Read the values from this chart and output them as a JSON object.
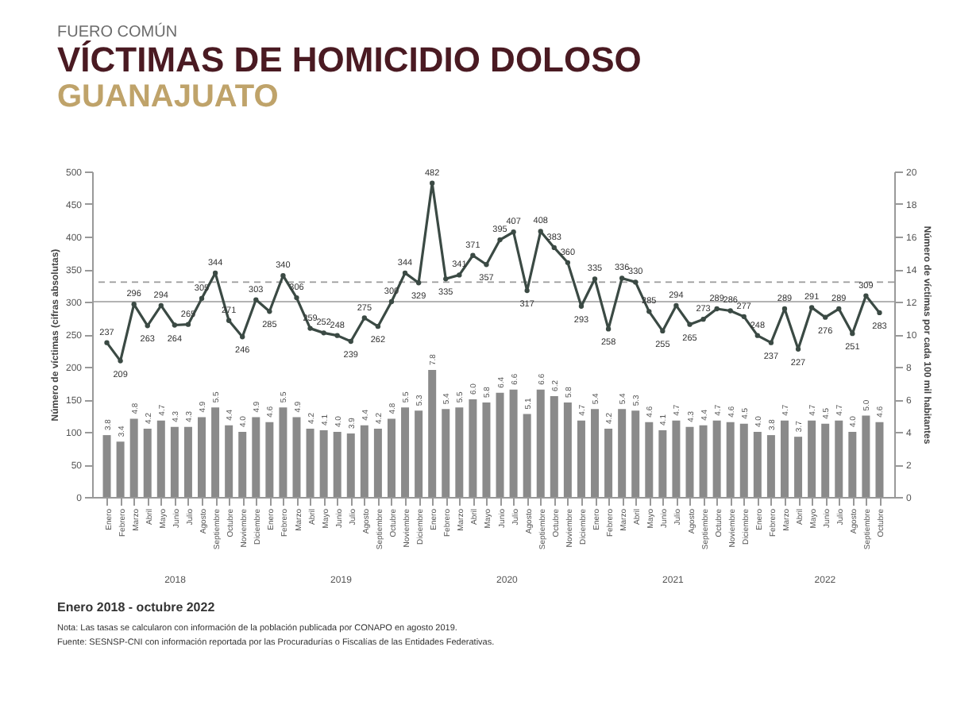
{
  "chart_data": {
    "type": "line",
    "title": "VÍCTIMAS DE HOMICIDIO DOLOSO",
    "subtitle": "GUANAJUATO",
    "categories": [
      "Enero",
      "Febrero",
      "Marzo",
      "Abril",
      "Mayo",
      "Junio",
      "Julio",
      "Agosto",
      "Septiembre",
      "Octubre",
      "Noviembre",
      "Diciembre",
      "Enero",
      "Febrero",
      "Marzo",
      "Abril",
      "Mayo",
      "Junio",
      "Julio",
      "Agosto",
      "Septiembre",
      "Octubre",
      "Noviembre",
      "Diciembre",
      "Enero",
      "Febrero",
      "Marzo",
      "Abril",
      "Mayo",
      "Junio",
      "Julio",
      "Agosto",
      "Septiembre",
      "Octubre",
      "Noviembre",
      "Diciembre",
      "Enero",
      "Febrero",
      "Marzo",
      "Abril",
      "Mayo",
      "Junio",
      "Julio",
      "Agosto",
      "Septiembre",
      "Octubre",
      "Noviembre",
      "Diciembre",
      "Enero",
      "Febrero",
      "Marzo",
      "Abril",
      "Mayo",
      "Junio",
      "Julio",
      "Agosto",
      "Septiembre",
      "Octubre"
    ],
    "series": [
      {
        "color": "#3b4a44",
        "values": [
          237,
          209,
          296,
          263,
          294,
          264,
          265,
          305,
          344,
          271,
          246,
          303,
          285,
          340,
          306,
          259,
          252,
          248,
          239,
          275,
          262,
          300,
          344,
          329,
          482,
          335,
          341,
          371,
          357,
          395,
          407,
          317,
          408,
          383,
          360,
          293,
          335,
          258,
          336,
          330,
          285,
          255,
          294,
          265,
          273,
          289,
          286,
          277,
          248,
          237,
          289,
          227,
          291,
          276,
          289,
          251,
          309,
          283
        ]
      },
      {
        "type": "bar",
        "axis": "y2",
        "color": "#8a8a8a",
        "values": [
          3.8,
          3.4,
          4.8,
          4.2,
          4.7,
          4.3,
          4.3,
          4.9,
          5.5,
          4.4,
          4.0,
          4.9,
          4.6,
          5.5,
          4.9,
          4.2,
          4.1,
          4.0,
          3.9,
          4.4,
          4.2,
          4.8,
          5.5,
          5.3,
          7.8,
          5.4,
          5.5,
          6.0,
          5.8,
          6.4,
          6.6,
          5.1,
          6.6,
          6.2,
          5.8,
          4.7,
          5.4,
          4.2,
          5.4,
          5.3,
          4.6,
          4.1,
          4.7,
          4.3,
          4.4,
          4.7,
          4.6,
          4.5,
          4.0,
          3.8,
          4.7,
          3.7,
          4.7,
          4.5,
          4.7,
          4.0,
          5.0,
          4.6
        ],
        "value_labels": [
          "3.8",
          "3.4",
          "4.8",
          "4.2",
          "4.7",
          "4.3",
          "4.3",
          "4.9",
          "5.5",
          "4.4",
          "4.0",
          "4.9",
          "4.6",
          "5.5",
          "4.9",
          "4.2",
          "4.1",
          "4.0",
          "3.9",
          "4.4",
          "4.2",
          "4.8",
          "5.5",
          "5.3",
          "7.8",
          "5.4",
          "5.5",
          "6.0",
          "5.8",
          "6.4",
          "6.6",
          "5.1",
          "6.6",
          "6.2",
          "5.8",
          "4.7",
          "5.4",
          "4.2",
          "5.4",
          "5.3",
          "4.6",
          "4.1",
          "4.7",
          "4.3",
          "4.4",
          "4.7",
          "4.6",
          "4.5",
          "4.0",
          "3.8",
          "4.7",
          "3.7",
          "4.7",
          "4.5",
          "4.7",
          "4.0",
          "5.0",
          "4.6"
        ]
      }
    ],
    "data_labels": true,
    "marker": "circle",
    "grid": false,
    "ylabel": "Número de víctimas (cifras absolutas)",
    "y2label": "Número de víctimas por cada 100 mil habitantes",
    "ylim": [
      0,
      500
    ],
    "yticks": [
      0,
      50,
      100,
      150,
      200,
      250,
      300,
      350,
      400,
      450,
      500
    ],
    "y2lim": [
      0,
      20
    ],
    "y2ticks": [
      0,
      2,
      4,
      6,
      8,
      10,
      12,
      14,
      16,
      18,
      20
    ],
    "ref_lines": [
      {
        "axis": "y",
        "value": 300,
        "color": "#9a9a9a",
        "line_style": "solid"
      },
      {
        "axis": "y",
        "value": 330,
        "color": "#9a9a9a",
        "line_style": "dashed"
      }
    ],
    "annotations": [
      "FUERO COMÚN",
      "2018",
      "2019",
      "2020",
      "2021",
      "2022",
      "Enero 2018 - octubre 2022",
      "Nota: Las tasas se calcularon con información de la población publicada por CONAPO en agosto 2019.",
      "Fuente: SESNSP-CNI con información reportada por las Procuradurías o Fiscalías de las Entidades Federativas."
    ]
  }
}
